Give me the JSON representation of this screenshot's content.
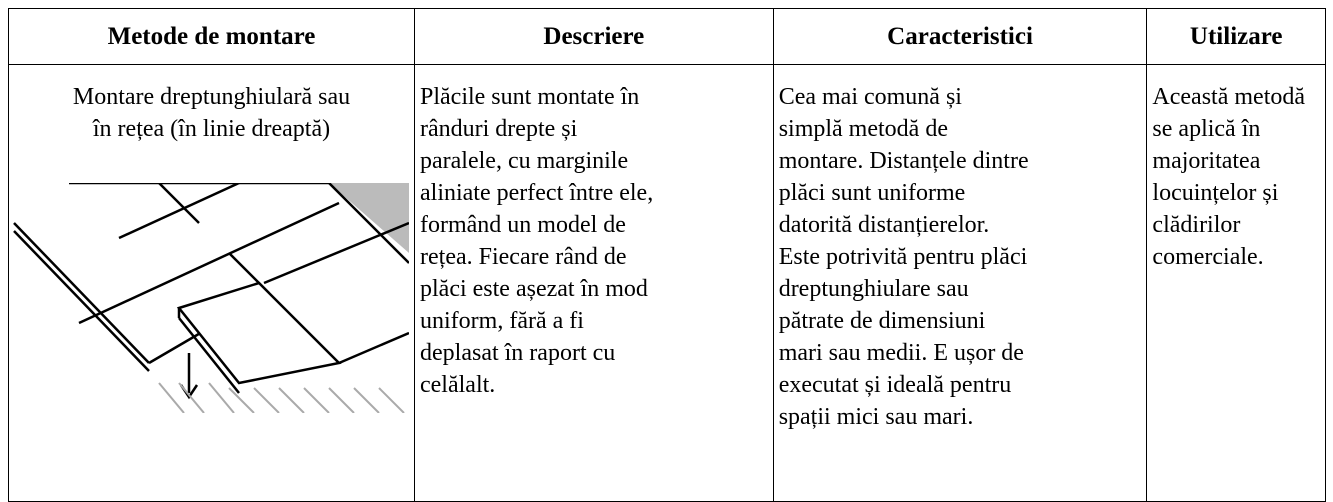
{
  "table": {
    "header": [
      "Metode de montare",
      "Descriere",
      "Caracteristici",
      "Utilizare"
    ],
    "rows": [
      [
        [
          "Montare dreptunghiulară sau",
          "în rețea (în linie dreaptă)"
        ],
        [
          "Plăcile sunt montate în",
          "rânduri drepte și",
          "paralele, cu marginile",
          "aliniate perfect între ele,",
          "formând un model de",
          "rețea. Fiecare rând de",
          "plăci este așezat în mod",
          "uniform, fără a fi",
          "deplasat în raport cu",
          "celălalt."
        ],
        [
          "Cea mai comună și",
          "simplă metodă de",
          "montare. Distanțele dintre",
          "plăci sunt uniforme",
          "datorită distanțierelor.",
          "Este potrivită pentru plăci",
          "dreptunghiulare sau",
          "pătrate de dimensiuni",
          "mari sau medii. E ușor de",
          "executat și ideală pentru",
          "spații mici sau mari."
        ],
        [
          "Această metodă",
          "se aplică în",
          "majoritatea",
          "locuințelor și",
          "clădirilor",
          "comerciale."
        ]
      ]
    ]
  }
}
